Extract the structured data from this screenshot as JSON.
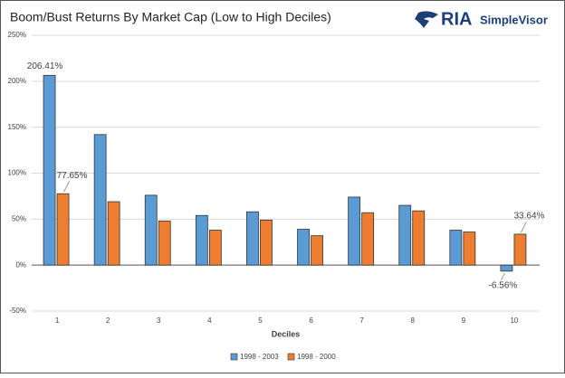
{
  "logo": {
    "brand": "RIA",
    "product": "SimpleVisor"
  },
  "chart_data": {
    "type": "bar",
    "title": "Boom/Bust Returns By Market Cap (Low to High Deciles)",
    "x_label": "Deciles",
    "categories": [
      "1",
      "2",
      "3",
      "4",
      "5",
      "6",
      "7",
      "8",
      "9",
      "10"
    ],
    "series": [
      {
        "name": "1998 - 2003",
        "color": "#5b9bd5",
        "values": [
          206.41,
          142,
          76,
          54,
          58,
          39,
          74,
          65,
          38,
          -6.56
        ],
        "value_labels": [
          "206.41%",
          null,
          null,
          null,
          null,
          null,
          null,
          null,
          null,
          "-6.56%"
        ]
      },
      {
        "name": "1998 - 2000",
        "color": "#ed7d31",
        "values": [
          77.65,
          69,
          48,
          38,
          49,
          32,
          57,
          59,
          36,
          33.64
        ],
        "value_labels": [
          "77.65%",
          null,
          null,
          null,
          null,
          null,
          null,
          null,
          null,
          "33.64%"
        ]
      }
    ],
    "ylim": [
      -50,
      250
    ],
    "yticks": [
      {
        "value": -50,
        "label": "-50%"
      },
      {
        "value": 0,
        "label": "0%"
      },
      {
        "value": 50,
        "label": "50%"
      },
      {
        "value": 100,
        "label": "100%"
      },
      {
        "value": 150,
        "label": "150%"
      },
      {
        "value": 200,
        "label": "200%"
      },
      {
        "value": 250,
        "label": "250%"
      }
    ],
    "grid": true,
    "legend": "bottom"
  }
}
